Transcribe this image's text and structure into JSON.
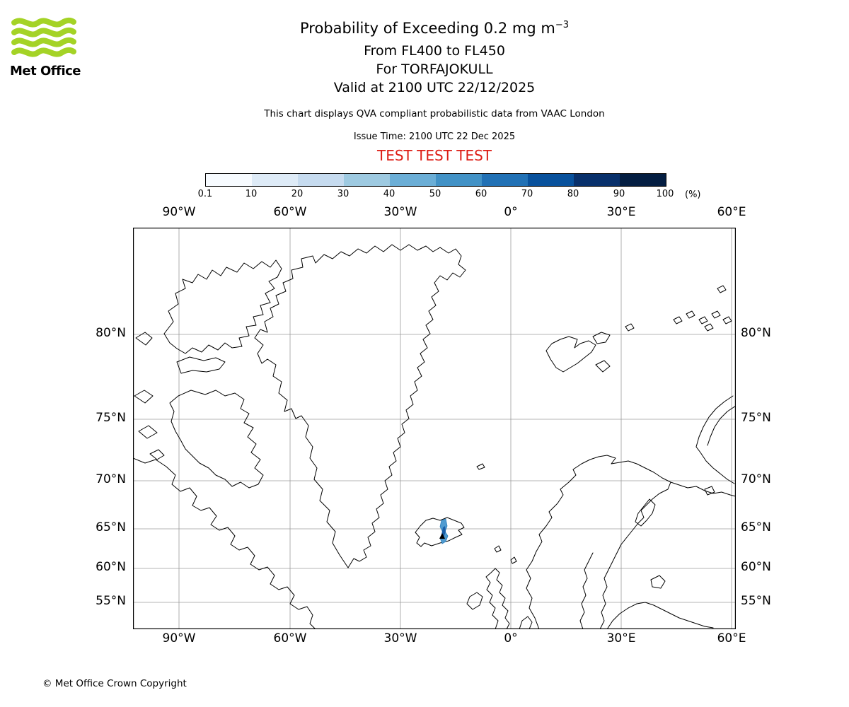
{
  "logo": {
    "text": "Met Office",
    "wave_color": "#a4d326"
  },
  "header": {
    "title_main": "Probability of Exceeding 0.2 mg m",
    "title_exponent": "−3",
    "subtitle_fl": "From FL400 to FL450",
    "subtitle_for": "For TORFAJOKULL",
    "subtitle_valid": "Valid at 2100 UTC 22/12/2025",
    "note": "This chart displays QVA compliant probabilistic data from VAAC London",
    "issue_time": "Issue Time: 2100 UTC 22 Dec 2025",
    "test_banner": "TEST TEST TEST",
    "test_color": "#dd1c14"
  },
  "colorbar": {
    "tick_labels": [
      "0.1",
      "10",
      "20",
      "30",
      "40",
      "50",
      "60",
      "70",
      "80",
      "90",
      "100"
    ],
    "unit_label": "(%)",
    "colors": [
      "#f7fbff",
      "#deebf7",
      "#c6dbef",
      "#9ecae1",
      "#6baed6",
      "#4292c6",
      "#2171b5",
      "#08519c",
      "#08306b",
      "#041e42"
    ]
  },
  "map": {
    "lon_labels": [
      "90°W",
      "60°W",
      "30°W",
      "0°",
      "30°E",
      "60°E"
    ],
    "lat_labels": [
      "80°N",
      "75°N",
      "70°N",
      "65°N",
      "60°N",
      "55°N"
    ],
    "probability_fill": "#4f9bd0",
    "probability_core": "#1a5fa8"
  },
  "footer": {
    "copyright": "© Met Office Crown Copyright"
  }
}
